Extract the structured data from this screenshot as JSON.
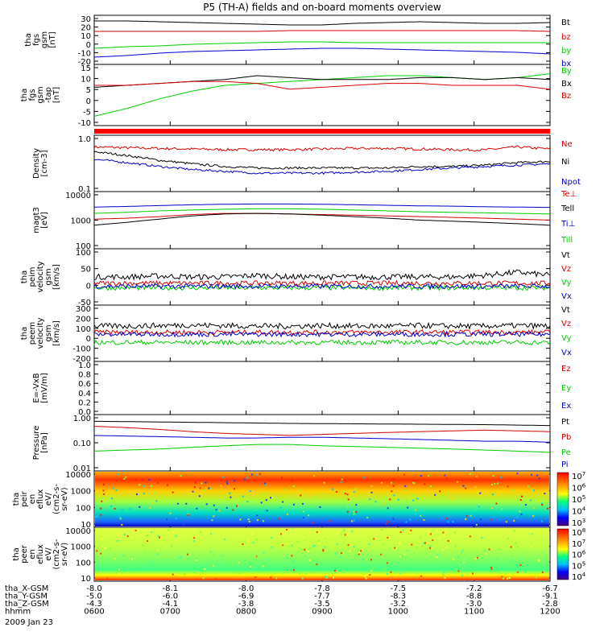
{
  "title": "P5 (TH-A) fields and on-board moments overview",
  "colors": {
    "black": "#000000",
    "red": "#d40000",
    "green": "#00cc00",
    "blue": "#0000cc",
    "bright_green": "#00ff00",
    "red_bar": "#ff0000"
  },
  "chart_data": [
    {
      "type": "line",
      "ylabel": [
        "tha",
        "fgs",
        "gsm",
        "[nT]"
      ],
      "yticks": [
        "30",
        "20",
        "10",
        "0",
        "-10",
        "-20"
      ],
      "ylim": [
        -25,
        32
      ],
      "series": [
        {
          "name": "Bt",
          "color": "black",
          "values": [
            27,
            27,
            26,
            25,
            24,
            23,
            22,
            22,
            24,
            25,
            26,
            25,
            24,
            24,
            25
          ]
        },
        {
          "name": "bz",
          "color": "red",
          "values": [
            14,
            14,
            14,
            14,
            14,
            14,
            15,
            15,
            15,
            15,
            15,
            15,
            15,
            15,
            14
          ]
        },
        {
          "name": "by",
          "color": "green",
          "values": [
            -7,
            -5,
            -4,
            -2,
            -1,
            0,
            1,
            1,
            0,
            0,
            0,
            0,
            0,
            0,
            0
          ]
        },
        {
          "name": "bx",
          "color": "blue",
          "values": [
            -18,
            -16,
            -13,
            -11,
            -10,
            -9,
            -8,
            -7,
            -7,
            -8,
            -9,
            -10,
            -11,
            -12,
            -14
          ]
        }
      ]
    },
    {
      "type": "line",
      "ylabel": [
        "tha",
        "fgs",
        "gsm",
        "-tap",
        "[nT]"
      ],
      "yticks": [
        "15",
        "10",
        "5",
        "0",
        "-5",
        "-10"
      ],
      "ylim": [
        -14,
        16
      ],
      "series": [
        {
          "name": "By",
          "color": "green",
          "values": [
            -10,
            -6,
            -1,
            3,
            6,
            7,
            8,
            9,
            10,
            11,
            11,
            10,
            9,
            10,
            12
          ]
        },
        {
          "name": "Bx",
          "color": "black",
          "values": [
            5,
            6,
            7,
            8,
            9,
            11,
            10,
            9,
            9,
            9,
            10,
            10,
            9,
            10,
            9
          ]
        },
        {
          "name": "Bz",
          "color": "red",
          "values": [
            6,
            6,
            7,
            8,
            8,
            7,
            4,
            5,
            6,
            7,
            7,
            6,
            6,
            6,
            4
          ]
        }
      ]
    },
    {
      "type": "line",
      "ylabel": [
        "Density",
        "[cm-3]"
      ],
      "yticks": [
        "1.0",
        "0.1"
      ],
      "scale": "log",
      "ylim": [
        0.1,
        1.2
      ],
      "series": [
        {
          "name": "Ne",
          "color": "red",
          "values": [
            0.75,
            0.72,
            0.7,
            0.68,
            0.66,
            0.66,
            0.66,
            0.68,
            0.7,
            0.7,
            0.68,
            0.66,
            0.65,
            0.75,
            0.68
          ]
        },
        {
          "name": "Ni",
          "color": "black",
          "values": [
            0.6,
            0.5,
            0.4,
            0.34,
            0.3,
            0.28,
            0.28,
            0.28,
            0.28,
            0.28,
            0.3,
            0.3,
            0.32,
            0.36,
            0.38
          ]
        },
        {
          "name": "Npot",
          "color": "blue",
          "values": [
            0.42,
            0.36,
            0.3,
            0.26,
            0.24,
            0.22,
            0.22,
            0.22,
            0.23,
            0.24,
            0.26,
            0.28,
            0.3,
            0.32,
            0.34
          ]
        }
      ]
    },
    {
      "type": "line",
      "ylabel": [
        "magt3",
        "[eV]"
      ],
      "yticks": [
        "10000",
        "1000",
        "100"
      ],
      "scale": "log",
      "ylim": [
        100,
        12000
      ],
      "series": [
        {
          "name": "Te⊥",
          "color": "red",
          "values": [
            1200,
            1300,
            1500,
            1800,
            2000,
            2000,
            1900,
            1800,
            1700,
            1600,
            1500,
            1400,
            1300,
            1200,
            1100
          ]
        },
        {
          "name": "Tell",
          "color": "black",
          "values": [
            700,
            900,
            1200,
            1600,
            1900,
            2000,
            1900,
            1700,
            1500,
            1300,
            1100,
            1000,
            900,
            800,
            700
          ]
        },
        {
          "name": "Ti⊥",
          "color": "blue",
          "values": [
            3500,
            3700,
            4000,
            4300,
            4500,
            4600,
            4600,
            4500,
            4300,
            4100,
            3900,
            3800,
            3600,
            3500,
            3400
          ]
        },
        {
          "name": "Till",
          "color": "green",
          "values": [
            2000,
            2200,
            2500,
            2700,
            2900,
            3000,
            3000,
            2900,
            2700,
            2500,
            2300,
            2200,
            2100,
            2000,
            1900
          ]
        }
      ]
    },
    {
      "type": "line",
      "ylabel": [
        "tha",
        "peim",
        "velocity",
        "gsm",
        "[km/s]"
      ],
      "yticks": [
        "100",
        "50",
        "0",
        "-50"
      ],
      "ylim": [
        -60,
        110
      ],
      "series": [
        {
          "name": "Vt",
          "color": "black",
          "values": [
            25,
            25,
            28,
            25,
            25,
            30,
            25,
            25,
            25,
            25,
            25,
            25,
            30,
            40,
            30
          ]
        },
        {
          "name": "Vz",
          "color": "red",
          "values": [
            5,
            5,
            5,
            5,
            5,
            5,
            5,
            5,
            5,
            5,
            5,
            5,
            5,
            5,
            5
          ]
        },
        {
          "name": "Vy",
          "color": "green",
          "values": [
            -10,
            -10,
            -10,
            -10,
            -10,
            -10,
            -10,
            -10,
            -10,
            -10,
            -10,
            -10,
            -10,
            -10,
            -10
          ]
        },
        {
          "name": "Vx",
          "color": "blue",
          "values": [
            -5,
            -5,
            -5,
            -5,
            -5,
            -5,
            -5,
            -5,
            -5,
            -5,
            -5,
            -5,
            -5,
            -5,
            -5
          ]
        }
      ]
    },
    {
      "type": "line",
      "ylabel": [
        "tha",
        "peem",
        "velocity",
        "gsm",
        "[km/s]"
      ],
      "yticks": [
        "300",
        "200",
        "100",
        "0",
        "-100",
        "-200"
      ],
      "ylim": [
        -210,
        310
      ],
      "series": [
        {
          "name": "Vt",
          "color": "black",
          "values": [
            120,
            120,
            125,
            130,
            125,
            120,
            120,
            125,
            120,
            120,
            125,
            120,
            120,
            125,
            120
          ]
        },
        {
          "name": "Vz",
          "color": "red",
          "values": [
            60,
            60,
            60,
            60,
            60,
            60,
            60,
            60,
            60,
            60,
            60,
            60,
            60,
            60,
            60
          ]
        },
        {
          "name": "Vy",
          "color": "green",
          "values": [
            -40,
            -40,
            -40,
            -40,
            -40,
            -40,
            -40,
            -40,
            -40,
            -40,
            -40,
            -40,
            -40,
            -40,
            -40
          ]
        },
        {
          "name": "Vx",
          "color": "blue",
          "values": [
            40,
            40,
            40,
            40,
            40,
            40,
            40,
            40,
            40,
            40,
            40,
            40,
            40,
            40,
            40
          ]
        }
      ]
    },
    {
      "type": "line",
      "ylabel": [
        "E=-VxB",
        "[mV/m]"
      ],
      "yticks": [
        "1.0",
        "0.8",
        "0.6",
        "0.4",
        "0.2",
        "0.0"
      ],
      "ylim": [
        0,
        1
      ],
      "series": [
        {
          "name": "Ez",
          "color": "red",
          "values": []
        },
        {
          "name": "Ey",
          "color": "green",
          "values": []
        },
        {
          "name": "Ex",
          "color": "blue",
          "values": []
        }
      ]
    },
    {
      "type": "line",
      "ylabel": [
        "Pressure",
        "[nPa]"
      ],
      "yticks": [
        "1.00",
        "0.10",
        "0.01"
      ],
      "scale": "log",
      "ylim": [
        0.01,
        1.1
      ],
      "series": [
        {
          "name": "Pt",
          "color": "black",
          "values": [
            0.7,
            0.68,
            0.66,
            0.64,
            0.62,
            0.6,
            0.58,
            0.57,
            0.56,
            0.55,
            0.54,
            0.53,
            0.52,
            0.5,
            0.48
          ]
        },
        {
          "name": "Pb",
          "color": "red",
          "values": [
            0.45,
            0.4,
            0.34,
            0.28,
            0.24,
            0.22,
            0.2,
            0.22,
            0.24,
            0.26,
            0.28,
            0.3,
            0.32,
            0.3,
            0.28
          ]
        },
        {
          "name": "Pe",
          "color": "green",
          "values": [
            0.05,
            0.055,
            0.06,
            0.07,
            0.08,
            0.09,
            0.09,
            0.08,
            0.075,
            0.07,
            0.065,
            0.06,
            0.055,
            0.05,
            0.045
          ]
        },
        {
          "name": "Pi",
          "color": "blue",
          "values": [
            0.2,
            0.19,
            0.18,
            0.17,
            0.16,
            0.16,
            0.17,
            0.17,
            0.16,
            0.15,
            0.14,
            0.13,
            0.12,
            0.12,
            0.11
          ]
        }
      ]
    },
    {
      "type": "heatmap",
      "ylabel": [
        "tha",
        "peir",
        "en",
        "eflux",
        "eV/",
        "(cm2-s-",
        "sr-eV)"
      ],
      "yticks": [
        "10000",
        "1000",
        "100",
        "10"
      ],
      "colorbar_ticks": [
        "10^7",
        "10^6",
        "10^5",
        "10^4",
        "10^3"
      ]
    },
    {
      "type": "heatmap",
      "ylabel": [
        "tha",
        "peer",
        "en",
        "eflux",
        "eV/",
        "(cm2-s-",
        "sr-eV)"
      ],
      "yticks": [
        "10000",
        "1000",
        "100",
        "10"
      ],
      "colorbar_ticks": [
        "10^8",
        "10^7",
        "10^6",
        "10^5",
        "10^4"
      ]
    }
  ],
  "xaxis": {
    "rows": [
      {
        "label": "tha_X-GSM",
        "values": [
          "-8.0",
          "-8.1",
          "-8.0",
          "-7.8",
          "-7.5",
          "-7.2",
          "-6.7"
        ]
      },
      {
        "label": "tha_Y-GSM",
        "values": [
          "-5.0",
          "-6.0",
          "-6.9",
          "-7.7",
          "-8.3",
          "-8.8",
          "-9.1"
        ]
      },
      {
        "label": "tha_Z-GSM",
        "values": [
          "-4.3",
          "-4.1",
          "-3.8",
          "-3.5",
          "-3.2",
          "-3.0",
          "-2.8"
        ]
      },
      {
        "label": "hhmm",
        "values": [
          "0600",
          "0700",
          "0800",
          "0900",
          "1000",
          "1100",
          "1200"
        ]
      }
    ],
    "date": "2009 Jan 23"
  }
}
